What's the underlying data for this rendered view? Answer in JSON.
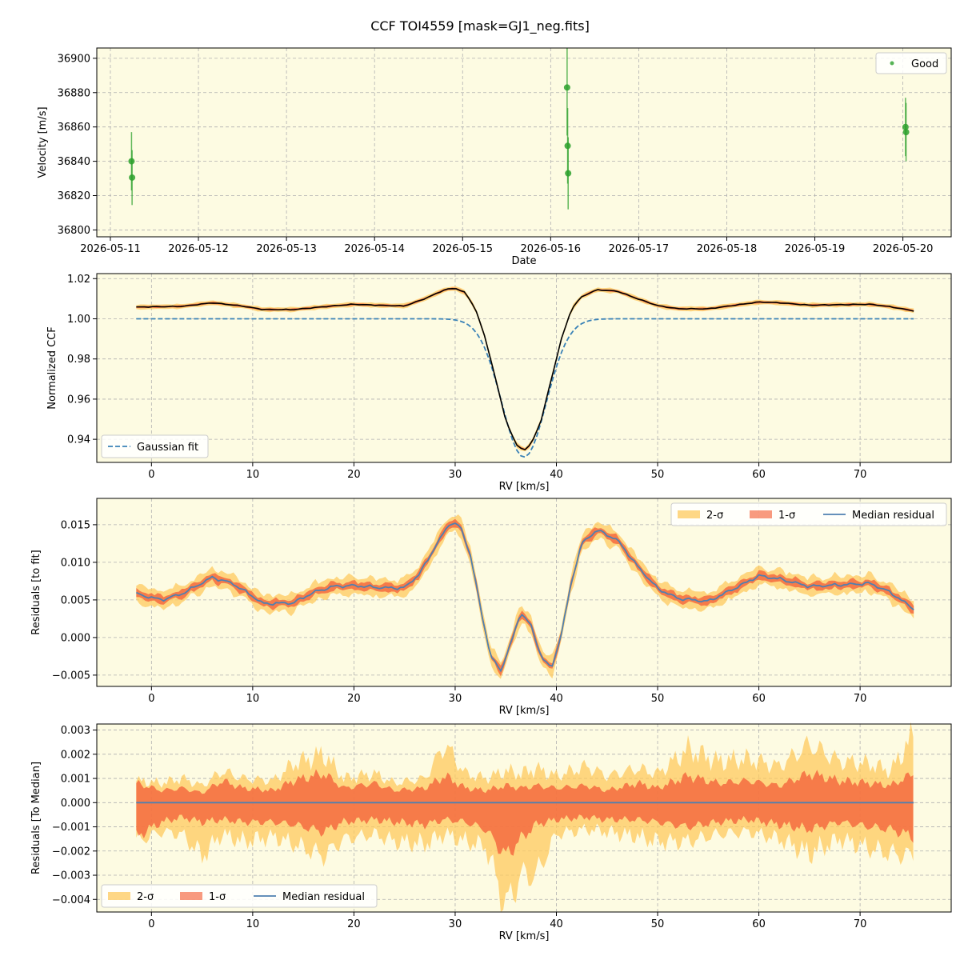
{
  "figure": {
    "title": "CCF TOI4559 [mask=GJ1_neg.fits]"
  },
  "colors": {
    "axes_bg": "#fdfbe2",
    "good": "#2ca02c",
    "fit": "#3a82b7",
    "sigma2": "#fdc95e",
    "sigma1": "#f4643c",
    "median": "#4f80b0",
    "ccf": "#000000"
  },
  "chart_data": [
    {
      "type": "scatter",
      "xlabel": "Date",
      "ylabel": "Velocity [m/s]",
      "xlim": [
        "2026-05-10T20:18",
        "2026-05-20T13:10"
      ],
      "ylim": [
        36796,
        36906
      ],
      "x_ticks": [
        "2026-05-11",
        "2026-05-12",
        "2026-05-13",
        "2026-05-14",
        "2026-05-15",
        "2026-05-16",
        "2026-05-17",
        "2026-05-18",
        "2026-05-19",
        "2026-05-20"
      ],
      "y_ticks": [
        36800,
        36820,
        36840,
        36860,
        36880,
        36900
      ],
      "grid": true,
      "legend": {
        "position": "top-right",
        "entries": [
          "Good"
        ]
      },
      "series": [
        {
          "name": "Good",
          "points": [
            {
              "x": "2026-05-11T05:46",
              "y": 36840,
              "err": 17
            },
            {
              "x": "2026-05-11T05:55",
              "y": 36830.5,
              "err": 16
            },
            {
              "x": "2026-05-16T04:29",
              "y": 36883,
              "err": 28
            },
            {
              "x": "2026-05-16T04:38",
              "y": 36849,
              "err": 22
            },
            {
              "x": "2026-05-16T04:46",
              "y": 36833,
              "err": 21
            },
            {
              "x": "2026-05-20T00:43",
              "y": 36860,
              "err": 17
            },
            {
              "x": "2026-05-20T00:52",
              "y": 36857,
              "err": 17
            }
          ]
        }
      ]
    },
    {
      "type": "line",
      "xlabel": "RV [km/s]",
      "ylabel": "Normalized CCF",
      "xlim": [
        -5.4,
        79.0
      ],
      "ylim": [
        0.9285,
        1.0225
      ],
      "x_ticks": [
        0,
        10,
        20,
        30,
        40,
        50,
        60,
        70
      ],
      "y_ticks": [
        0.94,
        0.96,
        0.98,
        1.0,
        1.02
      ],
      "y_tick_labels": [
        "0.94",
        "0.96",
        "0.98",
        "1.00",
        "1.02"
      ],
      "grid": true,
      "legend": {
        "position": "bottom-left",
        "entries": [
          "Gaussian fit"
        ]
      },
      "rv_range": [
        -1.5,
        75.3
      ],
      "gaussian_fit": {
        "name": "Gaussian fit",
        "baseline": 1.0,
        "depth": 0.0689,
        "center": 36.8,
        "sigma": 2.2
      },
      "ccf_median": [
        [
          -1.5,
          1.0058
        ],
        [
          3,
          1.0062
        ],
        [
          6,
          1.008
        ],
        [
          9,
          1.0063
        ],
        [
          11,
          1.0046
        ],
        [
          14,
          1.0046
        ],
        [
          17,
          1.006
        ],
        [
          20,
          1.0072
        ],
        [
          22,
          1.0068
        ],
        [
          25,
          1.0064
        ],
        [
          27,
          1.01
        ],
        [
          29,
          1.0145
        ],
        [
          30,
          1.0152
        ],
        [
          31,
          1.013
        ],
        [
          32,
          1.005
        ],
        [
          33,
          0.99
        ],
        [
          34,
          0.97
        ],
        [
          35,
          0.9495
        ],
        [
          36,
          0.9375
        ],
        [
          36.8,
          0.9345
        ],
        [
          37.5,
          0.9375
        ],
        [
          38.5,
          0.9495
        ],
        [
          39.5,
          0.97
        ],
        [
          40.5,
          0.99
        ],
        [
          41.5,
          1.005
        ],
        [
          42.5,
          1.011
        ],
        [
          44,
          1.0145
        ],
        [
          46,
          1.0138
        ],
        [
          48,
          1.01
        ],
        [
          50,
          1.0065
        ],
        [
          52,
          1.005
        ],
        [
          55,
          1.005
        ],
        [
          58,
          1.007
        ],
        [
          60,
          1.0083
        ],
        [
          62,
          1.008
        ],
        [
          65,
          1.0068
        ],
        [
          68,
          1.007
        ],
        [
          71,
          1.0072
        ],
        [
          73,
          1.006
        ],
        [
          75.3,
          1.004
        ]
      ]
    },
    {
      "type": "line",
      "xlabel": "RV [km/s]",
      "ylabel": "Residuals [to fit]",
      "xlim": [
        -5.4,
        79.0
      ],
      "ylim": [
        -0.0065,
        0.0185
      ],
      "x_ticks": [
        0,
        10,
        20,
        30,
        40,
        50,
        60,
        70
      ],
      "y_ticks": [
        -0.005,
        0.0,
        0.005,
        0.01,
        0.015
      ],
      "y_tick_labels": [
        "−0.005",
        "0.000",
        "0.005",
        "0.010",
        "0.015"
      ],
      "grid": true,
      "legend": {
        "position": "top-right",
        "entries": [
          "2-σ",
          "1-σ",
          "Median residual"
        ]
      },
      "median_residual": [
        [
          -1.5,
          0.0058
        ],
        [
          1,
          0.005
        ],
        [
          3,
          0.0058
        ],
        [
          6,
          0.008
        ],
        [
          8,
          0.0072
        ],
        [
          10,
          0.0055
        ],
        [
          11,
          0.0045
        ],
        [
          14,
          0.0046
        ],
        [
          16,
          0.006
        ],
        [
          18,
          0.0068
        ],
        [
          20,
          0.0069
        ],
        [
          23,
          0.0066
        ],
        [
          25,
          0.0066
        ],
        [
          26.5,
          0.0085
        ],
        [
          28,
          0.012
        ],
        [
          29.5,
          0.0153
        ],
        [
          30.5,
          0.0148
        ],
        [
          31.5,
          0.011
        ],
        [
          32.5,
          0.004
        ],
        [
          33.5,
          -0.0025
        ],
        [
          34.5,
          -0.0044
        ],
        [
          35.5,
          -0.0008
        ],
        [
          36.5,
          0.0034
        ],
        [
          37.5,
          0.0015
        ],
        [
          38.5,
          -0.0025
        ],
        [
          39.5,
          -0.0042
        ],
        [
          40.5,
          0.0005
        ],
        [
          41.5,
          0.0075
        ],
        [
          42.5,
          0.0125
        ],
        [
          44,
          0.0143
        ],
        [
          46,
          0.013
        ],
        [
          48,
          0.0095
        ],
        [
          50,
          0.0065
        ],
        [
          52,
          0.0052
        ],
        [
          55,
          0.0048
        ],
        [
          58,
          0.0068
        ],
        [
          60,
          0.0082
        ],
        [
          62,
          0.0078
        ],
        [
          65,
          0.0068
        ],
        [
          68,
          0.007
        ],
        [
          71,
          0.0072
        ],
        [
          73,
          0.006
        ],
        [
          75.3,
          0.0038
        ]
      ]
    },
    {
      "type": "area",
      "xlabel": "RV [km/s]",
      "ylabel": "Residuals [To Median]",
      "xlim": [
        -5.4,
        79.0
      ],
      "ylim": [
        -0.00452,
        0.00325
      ],
      "x_ticks": [
        0,
        10,
        20,
        30,
        40,
        50,
        60,
        70
      ],
      "y_ticks": [
        -0.004,
        -0.003,
        -0.002,
        -0.001,
        0.0,
        0.001,
        0.002,
        0.003
      ],
      "y_tick_labels": [
        "−0.004",
        "−0.003",
        "−0.002",
        "−0.001",
        "0.000",
        "0.001",
        "0.002",
        "0.003"
      ],
      "grid": true,
      "legend": {
        "position": "bottom-left",
        "entries": [
          "2-σ",
          "1-σ",
          "Median residual"
        ]
      },
      "median_value": 0.0,
      "sigma_envelope": {
        "x": [
          -1.5,
          1,
          3,
          5,
          7,
          9,
          12,
          14,
          17,
          19,
          22,
          24,
          27,
          29,
          31,
          33,
          35,
          36.5,
          38,
          40,
          43,
          45,
          48,
          50,
          53,
          56,
          59,
          62,
          65,
          68,
          71,
          73,
          75.3
        ],
        "s1_pos": [
          0.0008,
          0.0005,
          0.0006,
          0.0004,
          0.0009,
          0.0006,
          0.0005,
          0.0009,
          0.0012,
          0.0006,
          0.0008,
          0.0005,
          0.0006,
          0.0011,
          0.0006,
          0.0005,
          0.0007,
          0.0006,
          0.0007,
          0.0006,
          0.0007,
          0.0005,
          0.0008,
          0.0006,
          0.0011,
          0.0008,
          0.0009,
          0.0007,
          0.0012,
          0.0009,
          0.0008,
          0.0007,
          0.0012
        ],
        "s1_neg": [
          -0.0014,
          -0.0008,
          -0.0006,
          -0.0008,
          -0.0007,
          -0.0008,
          -0.0008,
          -0.0009,
          -0.0012,
          -0.0008,
          -0.0007,
          -0.0008,
          -0.0009,
          -0.0007,
          -0.0008,
          -0.0011,
          -0.0022,
          -0.0015,
          -0.0009,
          -0.0007,
          -0.0006,
          -0.0007,
          -0.0007,
          -0.0008,
          -0.001,
          -0.0008,
          -0.0007,
          -0.0009,
          -0.0011,
          -0.0008,
          -0.001,
          -0.0011,
          -0.0014
        ],
        "s2_pos": [
          0.0009,
          0.0008,
          0.001,
          0.0007,
          0.0013,
          0.001,
          0.0009,
          0.0016,
          0.002,
          0.001,
          0.0012,
          0.0008,
          0.001,
          0.0024,
          0.0012,
          0.001,
          0.0013,
          0.0012,
          0.0014,
          0.0011,
          0.0015,
          0.0011,
          0.0014,
          0.0012,
          0.0022,
          0.0017,
          0.0018,
          0.0015,
          0.0024,
          0.0017,
          0.0016,
          0.0013,
          0.0028
        ],
        "s2_neg": [
          -0.0016,
          -0.0012,
          -0.0013,
          -0.0022,
          -0.0013,
          -0.0016,
          -0.0014,
          -0.0017,
          -0.0022,
          -0.0015,
          -0.0013,
          -0.0016,
          -0.0017,
          -0.0013,
          -0.0016,
          -0.0018,
          -0.0043,
          -0.003,
          -0.003,
          -0.0013,
          -0.0011,
          -0.0012,
          -0.0014,
          -0.0016,
          -0.0016,
          -0.0013,
          -0.0012,
          -0.0015,
          -0.0021,
          -0.0015,
          -0.0019,
          -0.0021,
          -0.0022
        ]
      }
    }
  ]
}
